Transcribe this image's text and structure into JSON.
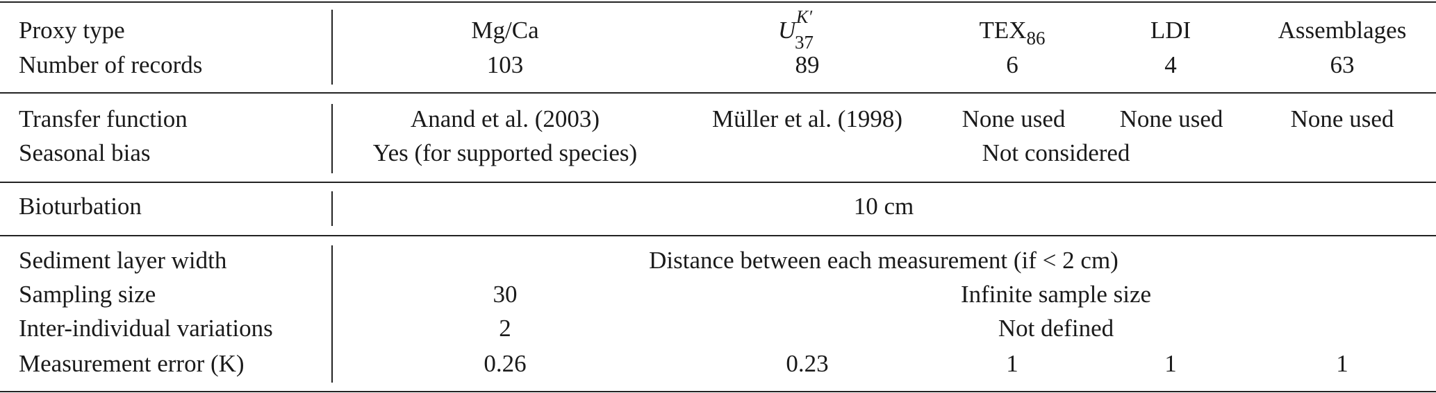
{
  "rows": {
    "proxy_type": {
      "label": "Proxy type",
      "mgca": "Mg/Ca",
      "uk37": {
        "base": "U",
        "sup": "K′",
        "sub": "37"
      },
      "tex86": {
        "base": "TEX",
        "sub": "86"
      },
      "ldi": "LDI",
      "assemblages": "Assemblages"
    },
    "num_records": {
      "label": "Number of records",
      "mgca": "103",
      "uk37": "89",
      "tex86": "6",
      "ldi": "4",
      "assemblages": "63"
    },
    "transfer": {
      "label": "Transfer function",
      "mgca": "Anand et al. (2003)",
      "uk37": "Müller et al. (1998)",
      "tex86": "None used",
      "ldi": "None used",
      "assemblages": "None used"
    },
    "seasonal": {
      "label": "Seasonal bias",
      "mgca": "Yes (for supported species)",
      "others": "Not considered"
    },
    "bioturbation": {
      "label": "Bioturbation",
      "all": "10 cm"
    },
    "layer": {
      "label": "Sediment layer width",
      "all": "Distance between each measurement (if < 2 cm)"
    },
    "sampling": {
      "label": "Sampling size",
      "mgca": "30",
      "others": "Infinite sample size"
    },
    "interind": {
      "label": "Inter-individual variations",
      "mgca": "2",
      "others": "Not defined"
    },
    "error": {
      "label": "Measurement error (K)",
      "mgca": "0.26",
      "uk37": "0.23",
      "tex86": "1",
      "ldi": "1",
      "assemblages": "1"
    }
  }
}
